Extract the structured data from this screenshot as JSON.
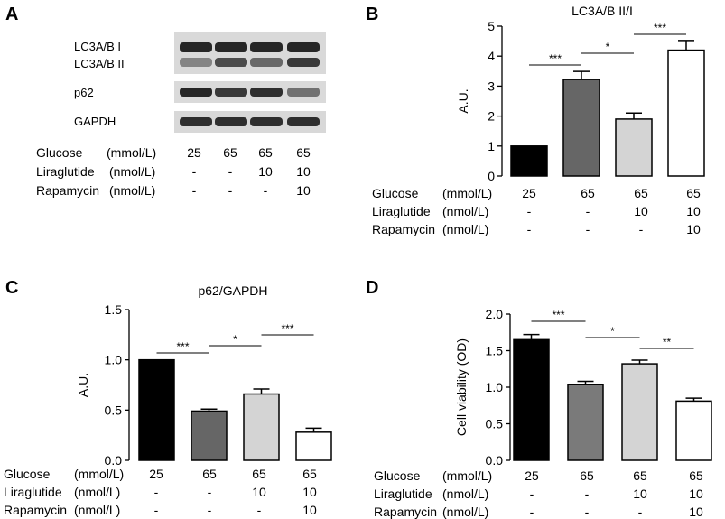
{
  "panels": [
    {
      "letter": "A"
    },
    {
      "letter": "B"
    },
    {
      "letter": "C"
    },
    {
      "letter": "D"
    }
  ],
  "blot": {
    "bands": [
      "LC3A/B I",
      "LC3A/B II",
      "p62",
      "GAPDH"
    ],
    "lane_count": 4
  },
  "conditions": {
    "row_labels": [
      [
        "Glucose",
        "(mmol/L)"
      ],
      [
        "Liraglutide",
        "(nmol/L)"
      ],
      [
        "Rapamycin",
        "(nmol/L)"
      ]
    ],
    "values": [
      [
        "25",
        "65",
        "65",
        "65"
      ],
      [
        "-",
        "-",
        "10",
        "10"
      ],
      [
        "-",
        "-",
        "-",
        "10"
      ]
    ]
  },
  "chart_data": [
    {
      "panel": "B",
      "type": "bar",
      "title": "LC3A/B II/I",
      "ylabel": "A.U.",
      "ylim": [
        0,
        5
      ],
      "yticks": [
        "0",
        "1",
        "2",
        "3",
        "4",
        "5"
      ],
      "values": [
        1.0,
        3.22,
        1.9,
        4.2
      ],
      "errors": [
        0.0,
        0.27,
        0.2,
        0.32
      ],
      "bar_colors": [
        "#000000",
        "#666666",
        "#d4d4d4",
        "#ffffff"
      ],
      "significance": [
        {
          "from": 0,
          "to": 1,
          "label": "***"
        },
        {
          "from": 1,
          "to": 2,
          "label": "*"
        },
        {
          "from": 2,
          "to": 3,
          "label": "***"
        }
      ]
    },
    {
      "panel": "C",
      "type": "bar",
      "title": "p62/GAPDH",
      "ylabel": "A.U.",
      "ylim": [
        0,
        1.5
      ],
      "yticks": [
        "0.0",
        "0.5",
        "1.0",
        "1.5"
      ],
      "values": [
        1.0,
        0.49,
        0.66,
        0.28
      ],
      "errors": [
        0.0,
        0.02,
        0.05,
        0.04
      ],
      "bar_colors": [
        "#000000",
        "#666666",
        "#d4d4d4",
        "#ffffff"
      ],
      "significance": [
        {
          "from": 0,
          "to": 1,
          "label": "***"
        },
        {
          "from": 1,
          "to": 2,
          "label": "*"
        },
        {
          "from": 2,
          "to": 3,
          "label": "***"
        }
      ]
    },
    {
      "panel": "D",
      "type": "bar",
      "title": "",
      "ylabel": "Cell viability (OD)",
      "ylim": [
        0,
        2.0
      ],
      "yticks": [
        "0.0",
        "0.5",
        "1.0",
        "1.5",
        "2.0"
      ],
      "values": [
        1.65,
        1.04,
        1.32,
        0.81
      ],
      "errors": [
        0.07,
        0.04,
        0.05,
        0.04
      ],
      "bar_colors": [
        "#000000",
        "#7a7a7a",
        "#d4d4d4",
        "#ffffff"
      ],
      "significance": [
        {
          "from": 0,
          "to": 1,
          "label": "***"
        },
        {
          "from": 1,
          "to": 2,
          "label": "*"
        },
        {
          "from": 2,
          "to": 3,
          "label": "**"
        }
      ]
    }
  ]
}
